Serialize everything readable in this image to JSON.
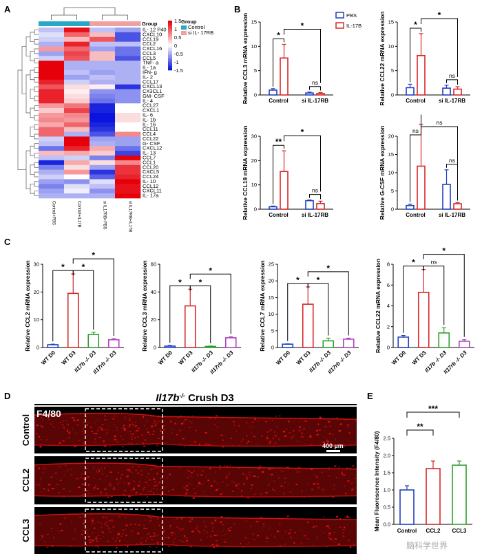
{
  "panels": {
    "A": "A",
    "B": "B",
    "C": "C",
    "D": "D",
    "E": "E"
  },
  "heatmap": {
    "group_title": "Group",
    "legend_title": "Group",
    "legend_items": [
      {
        "label": "Control",
        "color": "#2aa6c9"
      },
      {
        "label": "si IL- 17RB",
        "color": "#f0a0a0"
      }
    ],
    "scale_ticks": [
      "1.5",
      "1",
      "0.5",
      "0",
      "-0.5",
      "-1",
      "-1.5"
    ],
    "columns": [
      "Control+PBS",
      "Control+IL17B",
      "si IL17RB+PBS",
      "si IL17RB+IL17B"
    ],
    "rows": [
      "IL- 12 P40",
      "CXCL10",
      "CCL19",
      "CCL2",
      "CXCL16",
      "CCL3",
      "CCL5",
      "TNF- a",
      "IL- 1a",
      "IFN- g",
      "IL- 2",
      "CCL17",
      "CXCL13",
      "CX3CL1",
      "GM- CSF",
      "IL- 4",
      "CCL27",
      "CXCL1",
      "IL- 6",
      "IL- 1b",
      "IL- 16",
      "CCL11",
      "CCL4",
      "CCL22",
      "G- CSF",
      "CXCL12",
      "IL- 13",
      "CCL7",
      "CCL1",
      "CCL20",
      "CXCL5",
      "CCL24",
      "IL- 10",
      "CCL12",
      "CXCL11",
      "IL- 17a"
    ],
    "values": [
      [
        -0.4,
        1.4,
        -0.4,
        -0.6
      ],
      [
        -0.2,
        0.9,
        0.4,
        -1.1
      ],
      [
        -0.3,
        0.4,
        1.0,
        -1.1
      ],
      [
        -0.5,
        1.3,
        -0.4,
        -0.4
      ],
      [
        0.6,
        0.9,
        -0.6,
        -0.9
      ],
      [
        -0.6,
        1.1,
        0.4,
        -0.9
      ],
      [
        -0.3,
        1.0,
        0.4,
        -1.1
      ],
      [
        1.5,
        -0.5,
        -0.5,
        -0.5
      ],
      [
        1.5,
        -0.5,
        -0.5,
        -0.5
      ],
      [
        1.5,
        -0.4,
        -0.6,
        -0.5
      ],
      [
        1.5,
        -0.6,
        -0.4,
        -0.5
      ],
      [
        1.3,
        -0.3,
        -0.5,
        -0.5
      ],
      [
        1.0,
        0.2,
        0.1,
        -1.3
      ],
      [
        1.3,
        0.1,
        -0.7,
        -0.7
      ],
      [
        1.3,
        0.2,
        -0.8,
        -0.7
      ],
      [
        1.3,
        0.3,
        -0.9,
        -0.7
      ],
      [
        0.6,
        0.8,
        -1.4,
        0.0
      ],
      [
        0.3,
        1.1,
        -1.4,
        0.0
      ],
      [
        0.6,
        0.7,
        -1.5,
        0.2
      ],
      [
        0.7,
        0.6,
        -1.5,
        0.2
      ],
      [
        0.5,
        0.9,
        -1.4,
        0.0
      ],
      [
        0.9,
        0.4,
        -1.3,
        0.0
      ],
      [
        0.9,
        -0.5,
        -1.1,
        0.7
      ],
      [
        -0.3,
        1.5,
        -0.6,
        -0.6
      ],
      [
        -0.4,
        1.5,
        -0.5,
        -0.6
      ],
      [
        -0.9,
        1.3,
        0.5,
        -0.9
      ],
      [
        0.4,
        0.5,
        0.3,
        -1.2
      ],
      [
        -0.4,
        -0.3,
        -0.8,
        1.5
      ],
      [
        -1.4,
        0.5,
        0.2,
        0.7
      ],
      [
        -0.8,
        0.2,
        -0.6,
        1.2
      ],
      [
        -0.5,
        0.6,
        -1.3,
        1.2
      ],
      [
        -0.3,
        0.0,
        -1.0,
        1.3
      ],
      [
        -0.6,
        -0.7,
        -0.2,
        1.5
      ],
      [
        -0.8,
        -0.2,
        -0.4,
        1.4
      ],
      [
        -0.6,
        -0.1,
        -0.7,
        1.4
      ],
      [
        -0.5,
        -0.5,
        -0.5,
        1.5
      ]
    ]
  },
  "chart_data": [
    {
      "type": "bar",
      "panel": "B",
      "ylabel": "Relative CCL3 mRNA expression",
      "ylim": [
        0,
        15
      ],
      "yticks": [
        "0",
        "5",
        "10",
        "15"
      ],
      "categories": [
        "Control",
        "si IL-17RB"
      ],
      "series": [
        {
          "name": "PBS",
          "color": "#1f3fbf",
          "values": [
            1.0,
            0.4
          ],
          "errors": [
            0.3,
            0.2
          ]
        },
        {
          "name": "IL-17B",
          "color": "#d62728",
          "values": [
            7.6,
            0.3
          ],
          "errors": [
            2.8,
            0.2
          ]
        }
      ],
      "annotations": [
        {
          "type": "within",
          "group": 0,
          "label": "*"
        },
        {
          "type": "cross",
          "label": "*"
        },
        {
          "type": "within",
          "group": 1,
          "label": "ns"
        }
      ]
    },
    {
      "type": "bar",
      "panel": "B",
      "ylabel": "Relative CCL22 mRNA expression",
      "ylim": [
        0,
        15
      ],
      "yticks": [
        "0",
        "5",
        "10",
        "15"
      ],
      "categories": [
        "Control",
        "si IL-17RB"
      ],
      "series": [
        {
          "name": "PBS",
          "color": "#1f3fbf",
          "values": [
            1.5,
            1.4
          ],
          "errors": [
            0.7,
            0.6
          ]
        },
        {
          "name": "IL-17B",
          "color": "#d62728",
          "values": [
            8.1,
            1.2
          ],
          "errors": [
            4.5,
            0.5
          ]
        }
      ],
      "annotations": [
        {
          "type": "within",
          "group": 0,
          "label": "*"
        },
        {
          "type": "cross",
          "label": "*"
        },
        {
          "type": "within",
          "group": 1,
          "label": "ns"
        }
      ]
    },
    {
      "type": "bar",
      "panel": "B",
      "ylabel": "Relative CCL19 mRNA expression",
      "ylim": [
        0,
        30
      ],
      "yticks": [
        "0",
        "10",
        "20",
        "30"
      ],
      "categories": [
        "Control",
        "si IL-17RB"
      ],
      "series": [
        {
          "name": "PBS",
          "color": "#1f3fbf",
          "values": [
            1.0,
            3.5
          ],
          "errors": [
            0.3,
            0.3
          ]
        },
        {
          "name": "IL-17B",
          "color": "#d62728",
          "values": [
            15.5,
            2.3
          ],
          "errors": [
            8.5,
            1.0
          ]
        }
      ],
      "annotations": [
        {
          "type": "within",
          "group": 0,
          "label": "**"
        },
        {
          "type": "cross",
          "label": "*"
        },
        {
          "type": "within",
          "group": 1,
          "label": "ns"
        }
      ]
    },
    {
      "type": "bar",
      "panel": "B",
      "ylabel": "Relative G-CSF mRNA expression",
      "ylim": [
        0,
        20
      ],
      "yticks": [
        "0",
        "5",
        "10",
        "15",
        "20"
      ],
      "categories": [
        "Control",
        "si IL-17RB"
      ],
      "series": [
        {
          "name": "PBS",
          "color": "#1f3fbf",
          "values": [
            1.0,
            6.8
          ],
          "errors": [
            0.4,
            4.0
          ]
        },
        {
          "name": "IL-17B",
          "color": "#d62728",
          "values": [
            11.8,
            1.5
          ],
          "errors": [
            11.5,
            0.3
          ]
        }
      ],
      "annotations": [
        {
          "type": "within",
          "group": 0,
          "label": "ns"
        },
        {
          "type": "cross",
          "label": "ns"
        },
        {
          "type": "within",
          "group": 1,
          "label": "ns"
        }
      ]
    },
    {
      "type": "bar",
      "panel": "C",
      "ylabel": "Relative CCL2 mRNA expression",
      "ylim": [
        0,
        30
      ],
      "yticks": [
        "0",
        "10",
        "20",
        "30"
      ],
      "categories": [
        "WT D0",
        "WT D3",
        "Il17b -/- D3",
        "Il17rb -/- D3"
      ],
      "colors": [
        "#1f3fbf",
        "#d62728",
        "#2ca02c",
        "#b040c0"
      ],
      "values": [
        1.0,
        19.5,
        4.7,
        2.8
      ],
      "errors": [
        0.2,
        7.0,
        0.8,
        0.4
      ],
      "annotations": [
        {
          "from": 0,
          "to": 1,
          "label": "*"
        },
        {
          "from": 1,
          "to": 2,
          "label": "*"
        },
        {
          "from": 1,
          "to": 3,
          "label": "*"
        }
      ]
    },
    {
      "type": "bar",
      "panel": "C",
      "ylabel": "Relative CCL3 mRNA expression",
      "ylim": [
        0,
        60
      ],
      "yticks": [
        "0",
        "20",
        "40",
        "60"
      ],
      "categories": [
        "WT D0",
        "WT D3",
        "Il17b -/- D3",
        "Il17rb -/- D3"
      ],
      "colors": [
        "#1f3fbf",
        "#d62728",
        "#2ca02c",
        "#b040c0"
      ],
      "values": [
        1.0,
        30.0,
        0.8,
        7.0
      ],
      "errors": [
        0.5,
        12.0,
        0.3,
        0.8
      ],
      "annotations": [
        {
          "from": 0,
          "to": 1,
          "label": "*"
        },
        {
          "from": 1,
          "to": 2,
          "label": "*"
        },
        {
          "from": 1,
          "to": 3,
          "label": "*"
        }
      ]
    },
    {
      "type": "bar",
      "panel": "C",
      "ylabel": "Relative CCL7 mRNA expression",
      "ylim": [
        0,
        25
      ],
      "yticks": [
        "0",
        "5",
        "10",
        "15",
        "20",
        "25"
      ],
      "categories": [
        "WT D0",
        "WT D3",
        "Il17b -/- D3",
        "Il17rb -/- D3"
      ],
      "colors": [
        "#1f3fbf",
        "#d62728",
        "#2ca02c",
        "#b040c0"
      ],
      "values": [
        1.0,
        13.0,
        2.0,
        2.5
      ],
      "errors": [
        0.1,
        5.2,
        0.8,
        0.3
      ],
      "annotations": [
        {
          "from": 0,
          "to": 1,
          "label": "*"
        },
        {
          "from": 1,
          "to": 2,
          "label": "*"
        },
        {
          "from": 1,
          "to": 3,
          "label": "*"
        }
      ]
    },
    {
      "type": "bar",
      "panel": "C",
      "ylabel": "Relative CCL22 mRNA expression",
      "ylim": [
        0,
        8
      ],
      "yticks": [
        "0",
        "2",
        "4",
        "6",
        "8"
      ],
      "categories": [
        "WT D0",
        "WT D3",
        "Il17b -/- D3",
        "Il17rb -/- D3"
      ],
      "colors": [
        "#1f3fbf",
        "#d62728",
        "#2ca02c",
        "#b040c0"
      ],
      "values": [
        1.0,
        5.3,
        1.4,
        0.6
      ],
      "errors": [
        0.15,
        2.2,
        0.5,
        0.15
      ],
      "annotations": [
        {
          "from": 0,
          "to": 1,
          "label": "*"
        },
        {
          "from": 1,
          "to": 2,
          "label": "ns"
        },
        {
          "from": 1,
          "to": 3,
          "label": "*"
        }
      ]
    },
    {
      "type": "bar",
      "panel": "E",
      "ylabel": "Mean Fluorescence Intensity (F4/80)",
      "ylim": [
        0,
        2.5
      ],
      "yticks": [
        "0.0",
        "0.5",
        "1.0",
        "1.5",
        "2.0",
        "2.5"
      ],
      "categories": [
        "Control",
        "CCL2",
        "CCL3"
      ],
      "colors": [
        "#1f3fbf",
        "#d62728",
        "#2ca02c"
      ],
      "values": [
        1.0,
        1.62,
        1.72
      ],
      "errors": [
        0.12,
        0.22,
        0.12
      ],
      "annotations": [
        {
          "from": 0,
          "to": 1,
          "label": "**"
        },
        {
          "from": 0,
          "to": 2,
          "label": "***"
        }
      ]
    }
  ],
  "micrographs": {
    "title_gene": "Il17b",
    "title_sup": "-/-",
    "title_rest": " Crush D3",
    "stain": "F4/80",
    "rows": [
      "Control",
      "CCL2",
      "CCL3"
    ],
    "scale_bar": "400 µm"
  },
  "watermark": "脑科学世界"
}
